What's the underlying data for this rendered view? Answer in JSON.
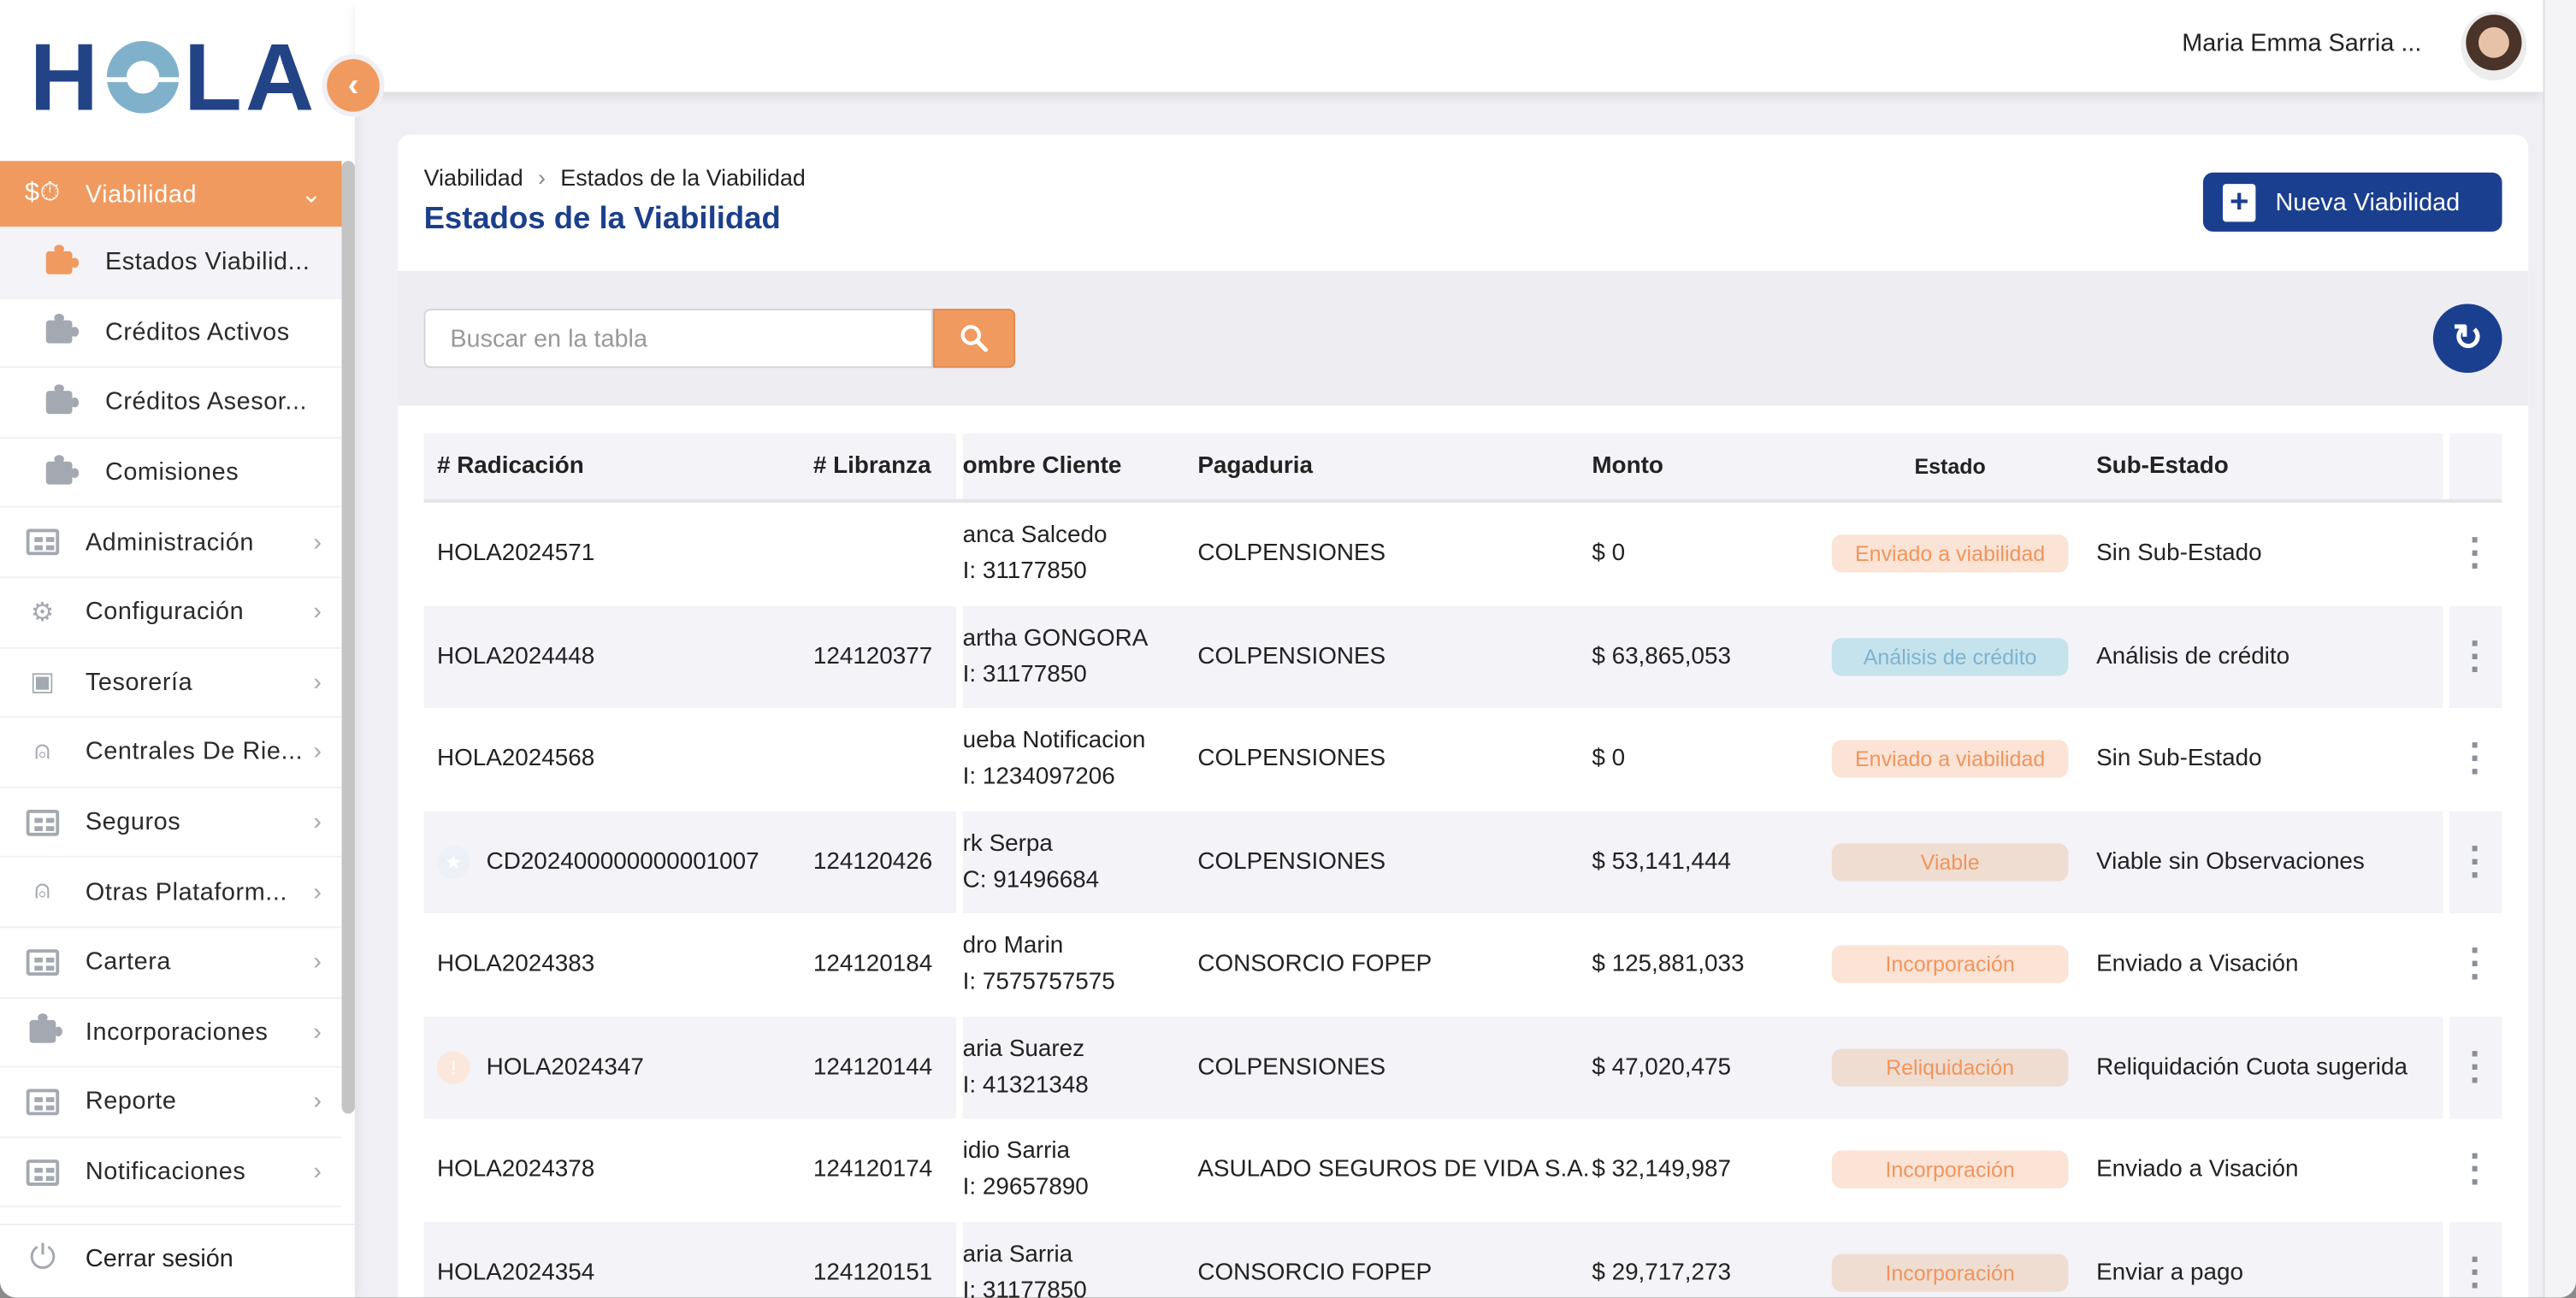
{
  "brand": {
    "logo_text": "HOLA"
  },
  "sidebar": {
    "active_group": {
      "label": "Viabilidad",
      "icon": "money-clock-icon"
    },
    "sub_items": [
      {
        "label": "Estados Viabilid...",
        "active": true
      },
      {
        "label": "Créditos Activos"
      },
      {
        "label": "Créditos Asesor..."
      },
      {
        "label": "Comisiones"
      }
    ],
    "items": [
      {
        "label": "Administración",
        "icon": "grid-icon"
      },
      {
        "label": "Configuración",
        "icon": "gear-icon"
      },
      {
        "label": "Tesorería",
        "icon": "safe-icon"
      },
      {
        "label": "Centrales De Rie...",
        "icon": "alarm-icon"
      },
      {
        "label": "Seguros",
        "icon": "grid-icon"
      },
      {
        "label": "Otras Plataform...",
        "icon": "alarm-icon"
      },
      {
        "label": "Cartera",
        "icon": "grid-icon"
      },
      {
        "label": "Incorporaciones",
        "icon": "puzzle-icon"
      },
      {
        "label": "Reporte",
        "icon": "grid-icon"
      },
      {
        "label": "Notificaciones",
        "icon": "grid-icon"
      }
    ],
    "logout": "Cerrar sesión"
  },
  "header": {
    "user_name": "Maria Emma Sarria ..."
  },
  "page": {
    "breadcrumb": [
      "Viabilidad",
      "Estados de la Viabilidad"
    ],
    "title": "Estados de la Viabilidad",
    "new_button": "Nueva Viabilidad",
    "search_placeholder": "Buscar en la tabla"
  },
  "colors": {
    "accent": "#f09a5f",
    "primary": "#1b3f8f"
  },
  "table": {
    "columns": [
      "# Radicación",
      "# Libranza",
      "ombre Cliente",
      "Pagaduria",
      "Monto",
      "Estado",
      "Sub-Estado"
    ],
    "rows": [
      {
        "radicacion": "HOLA2024571",
        "libranza": "",
        "cliente": "anca Salcedo",
        "doc": "I: 31177850",
        "pagaduria": "COLPENSIONES",
        "monto": "$ 0",
        "estado": "Enviado a viabilidad",
        "estado_type": "orange",
        "sub_estado": "Sin Sub-Estado"
      },
      {
        "radicacion": "HOLA2024448",
        "libranza": "124120377",
        "cliente": "artha GONGORA",
        "doc": "I: 31177850",
        "pagaduria": "COLPENSIONES",
        "monto": "$ 63,865,053",
        "estado": "Análisis de crédito",
        "estado_type": "blue",
        "sub_estado": "Análisis de crédito"
      },
      {
        "radicacion": "HOLA2024568",
        "libranza": "",
        "cliente": "ueba Notificacion",
        "doc": "I: 1234097206",
        "pagaduria": "COLPENSIONES",
        "monto": "$ 0",
        "estado": "Enviado a viabilidad",
        "estado_type": "orange",
        "sub_estado": "Sin Sub-Estado"
      },
      {
        "radicacion": "CD202400000000001007",
        "libranza": "124120426",
        "cliente": "rk Serpa",
        "doc": "C: 91496684",
        "pagaduria": "COLPENSIONES",
        "monto": "$ 53,141,444",
        "estado": "Viable",
        "estado_type": "tan",
        "sub_estado": "Viable sin Observaciones",
        "icon": "star-icon"
      },
      {
        "radicacion": "HOLA2024383",
        "libranza": "124120184",
        "cliente": "dro Marin",
        "doc": "I: 7575757575",
        "pagaduria": "CONSORCIO FOPEP",
        "monto": "$ 125,881,033",
        "estado": "Incorporación",
        "estado_type": "orange",
        "sub_estado": "Enviado a Visación"
      },
      {
        "radicacion": "HOLA2024347",
        "libranza": "124120144",
        "cliente": "aria Suarez",
        "doc": "I: 41321348",
        "pagaduria": "COLPENSIONES",
        "monto": "$ 47,020,475",
        "estado": "Reliquidación",
        "estado_type": "tan",
        "sub_estado": "Reliquidación Cuota sugerida",
        "icon": "warning-icon"
      },
      {
        "radicacion": "HOLA2024378",
        "libranza": "124120174",
        "cliente": "idio Sarria",
        "doc": "I: 29657890",
        "pagaduria": "ASULADO SEGUROS DE VIDA S.A.",
        "monto": "$ 32,149,987",
        "estado": "Incorporación",
        "estado_type": "orange",
        "sub_estado": "Enviado a Visación"
      },
      {
        "radicacion": "HOLA2024354",
        "libranza": "124120151",
        "cliente": "aria Sarria",
        "doc": "I: 31177850",
        "pagaduria": "CONSORCIO FOPEP",
        "monto": "$ 29,717,273",
        "estado": "Incorporación",
        "estado_type": "tan",
        "sub_estado": "Enviar a pago"
      }
    ]
  }
}
